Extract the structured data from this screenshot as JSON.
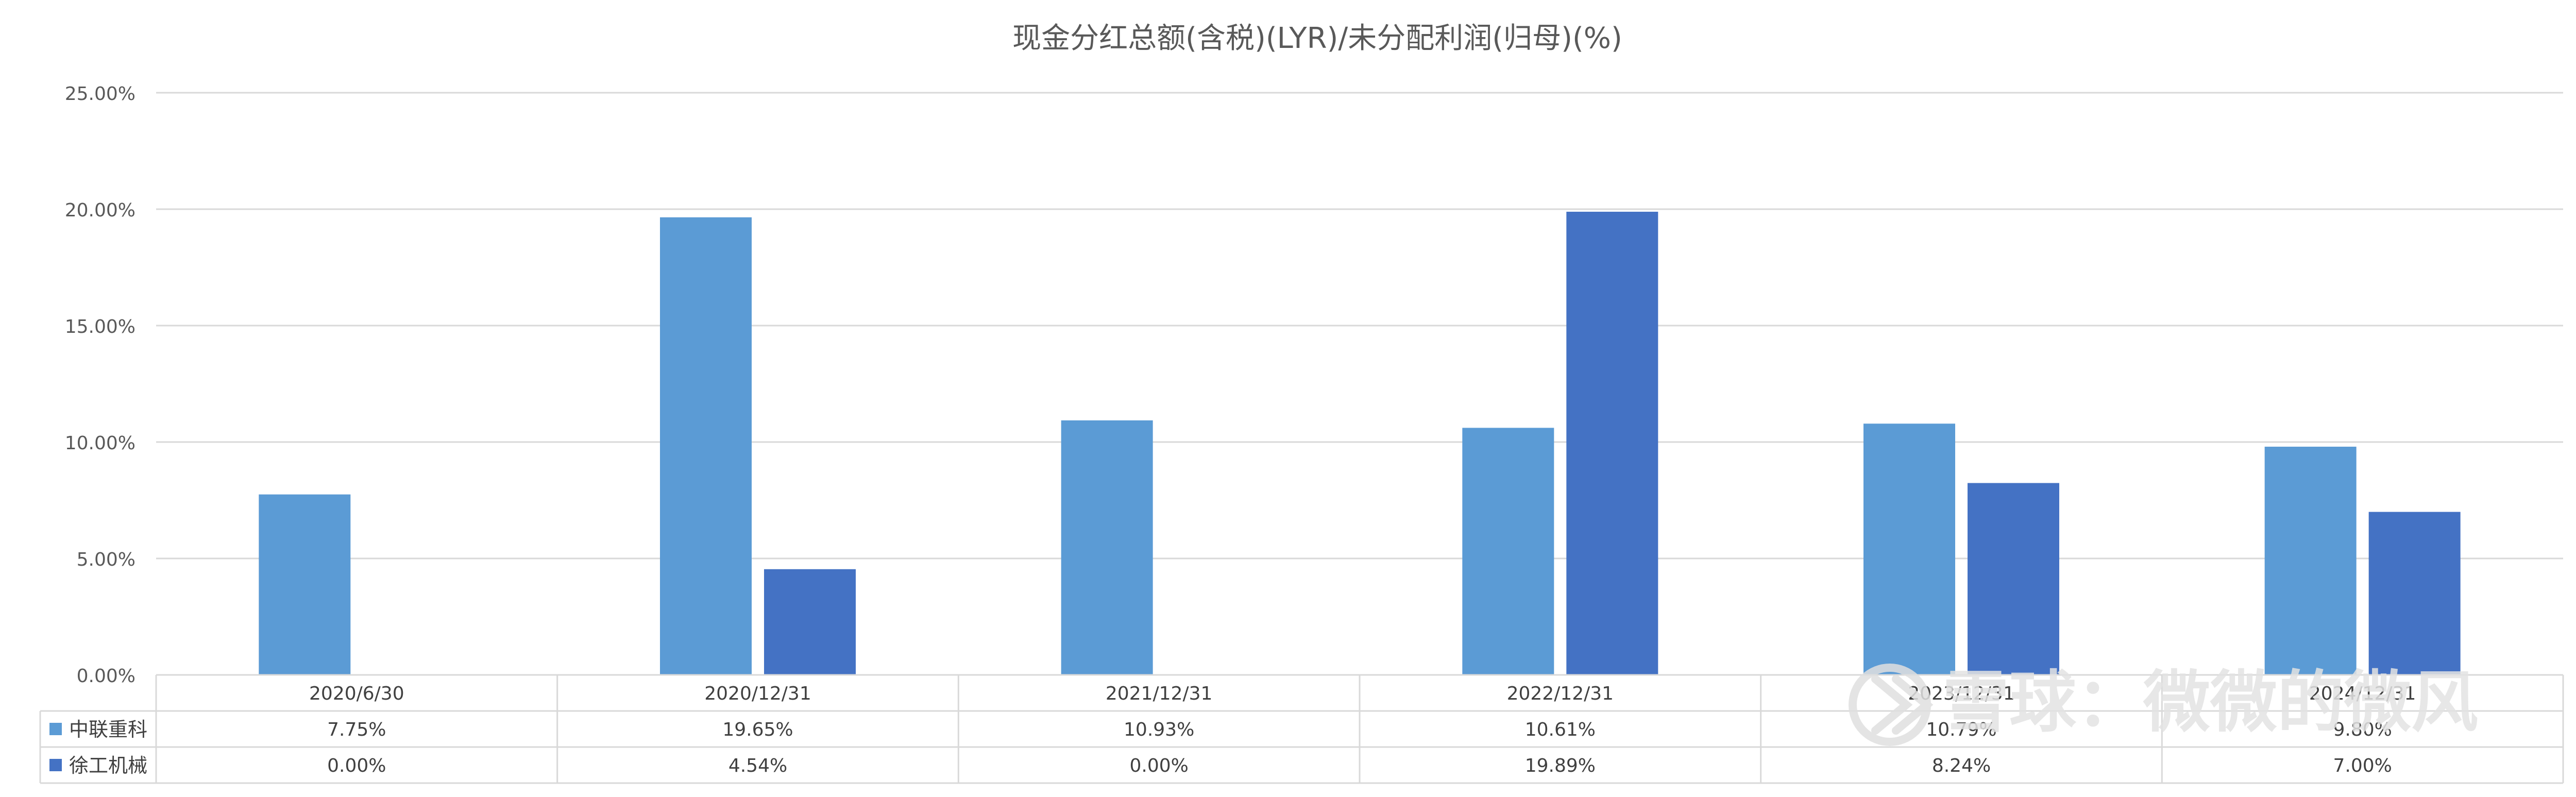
{
  "chart_data": {
    "type": "bar",
    "title": "现金分红总额(含税)(LYR)/未分配利润(归母)(%)",
    "categories": [
      "2020/6/30",
      "2020/12/31",
      "2021/12/31",
      "2022/12/31",
      "2023/12/31",
      "2024/12/31"
    ],
    "series": [
      {
        "name": "中联重科",
        "values": [
          7.75,
          19.65,
          10.93,
          10.61,
          10.79,
          9.8
        ],
        "labels": [
          "7.75%",
          "19.65%",
          "10.93%",
          "10.61%",
          "10.79%",
          "9.80%"
        ]
      },
      {
        "name": "徐工机械",
        "values": [
          0.0,
          4.54,
          0.0,
          19.89,
          8.24,
          7.0
        ],
        "labels": [
          "0.00%",
          "4.54%",
          "0.00%",
          "19.89%",
          "8.24%",
          "7.00%"
        ]
      }
    ],
    "ylim": [
      0,
      25
    ],
    "yticks": [
      "0.00%",
      "5.00%",
      "10.00%",
      "15.00%",
      "20.00%",
      "25.00%"
    ],
    "xlabel": "",
    "ylabel": "",
    "grid": true,
    "legend": "data-table",
    "colors": [
      "#5b9bd5",
      "#4472c4"
    ]
  },
  "watermark": {
    "text": "雪球：微微的微风"
  }
}
